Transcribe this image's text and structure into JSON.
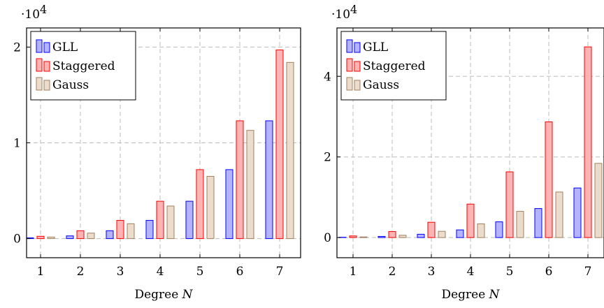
{
  "chart_data": [
    {
      "type": "bar",
      "categories": [
        "1",
        "2",
        "3",
        "4",
        "5",
        "6",
        "7"
      ],
      "series": [
        {
          "name": "GLL",
          "values": [
            70,
            280,
            820,
            1900,
            3900,
            7200,
            12300
          ]
        },
        {
          "name": "Staggered",
          "values": [
            240,
            820,
            1900,
            3900,
            7200,
            12300,
            19700
          ]
        },
        {
          "name": "Gauss",
          "values": [
            160,
            570,
            1550,
            3400,
            6500,
            11300,
            18400
          ]
        }
      ],
      "xlabel": "Degree",
      "xlabel_var": "N",
      "y_multiplier": "·10",
      "y_exponent": "4",
      "ylim": [
        -2000,
        22000
      ],
      "yticks": [
        0,
        10000,
        20000
      ],
      "ytick_labels": [
        "0",
        "1",
        "2"
      ],
      "grid": true,
      "legend_position": "top-left"
    },
    {
      "type": "bar",
      "categories": [
        "1",
        "2",
        "3",
        "4",
        "5",
        "6",
        "7"
      ],
      "series": [
        {
          "name": "GLL",
          "values": [
            70,
            280,
            820,
            1900,
            3900,
            7200,
            12300
          ]
        },
        {
          "name": "Staggered",
          "values": [
            400,
            1500,
            3800,
            8300,
            16300,
            28700,
            47300
          ]
        },
        {
          "name": "Gauss",
          "values": [
            160,
            570,
            1550,
            3400,
            6500,
            11300,
            18400
          ]
        }
      ],
      "xlabel": "Degree",
      "xlabel_var": "N",
      "y_multiplier": "·10",
      "y_exponent": "4",
      "ylim": [
        -5000,
        52000
      ],
      "yticks": [
        0,
        20000,
        40000
      ],
      "ytick_labels": [
        "0",
        "2",
        "4"
      ],
      "grid": true,
      "legend_position": "top-left"
    }
  ],
  "colors": {
    "GLL_fill": "#b3b3ff",
    "GLL_stroke": "#0000ff",
    "Staggered_fill": "#ffb3b3",
    "Staggered_stroke": "#ff0000",
    "Gauss_fill": "#ecdccb",
    "Gauss_stroke": "#a08060"
  }
}
